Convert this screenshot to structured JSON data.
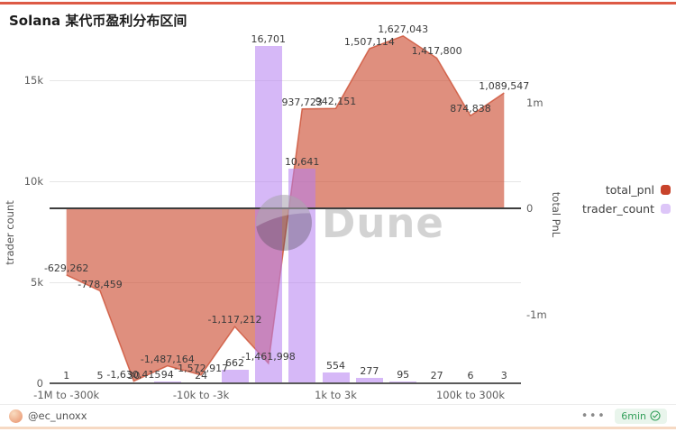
{
  "page": {
    "title": "Solana 某代币盈利分布区间"
  },
  "chart_data": {
    "type": "combo_bar_area",
    "n_categories": 14,
    "x_tick_labels": [
      {
        "index": 0,
        "label": "-1M to -300k"
      },
      {
        "index": 4,
        "label": "-10k to -3k"
      },
      {
        "index": 8,
        "label": "1k to 3k"
      },
      {
        "index": 12,
        "label": "100k to 300k"
      }
    ],
    "series": [
      {
        "name": "total_pnl",
        "type": "area",
        "axis": "right",
        "color": "#cb4a2e",
        "fill_opacity": 0.62,
        "values": [
          -629262,
          -778459,
          -1630415,
          -1487164,
          -1572917,
          -1117212,
          -1461998,
          937723,
          942151,
          1507114,
          1627043,
          1417800,
          874838,
          1089547
        ]
      },
      {
        "name": "trader_count",
        "type": "bar",
        "axis": "left",
        "color": "#b57df0",
        "fill_opacity": 0.55,
        "values": [
          1,
          5,
          30,
          94,
          24,
          662,
          16701,
          10641,
          554,
          277,
          95,
          27,
          6,
          3
        ]
      }
    ],
    "left_axis": {
      "title": "trader count",
      "ticks": [
        {
          "label": "0",
          "value": 0
        },
        {
          "label": "5k",
          "value": 5000
        },
        {
          "label": "10k",
          "value": 10000
        },
        {
          "label": "15k",
          "value": 15000
        }
      ]
    },
    "right_axis": {
      "title": "total PnL",
      "ticks": [
        {
          "label": "-1m",
          "value": -1000000
        },
        {
          "label": "0",
          "value": 0
        },
        {
          "label": "1m",
          "value": 1000000
        }
      ]
    },
    "grid": true,
    "legend_position": "right",
    "data_labels": true
  },
  "legend": {
    "items": [
      {
        "label": "total_pnl",
        "color": "#c8432b"
      },
      {
        "label": "trader_count",
        "color": "#ddc6f8"
      }
    ]
  },
  "watermark": {
    "text": "Dune"
  },
  "footer": {
    "handle": "@ec_unoxx",
    "menu_icon": "•••",
    "refresh_badge": "6min"
  }
}
